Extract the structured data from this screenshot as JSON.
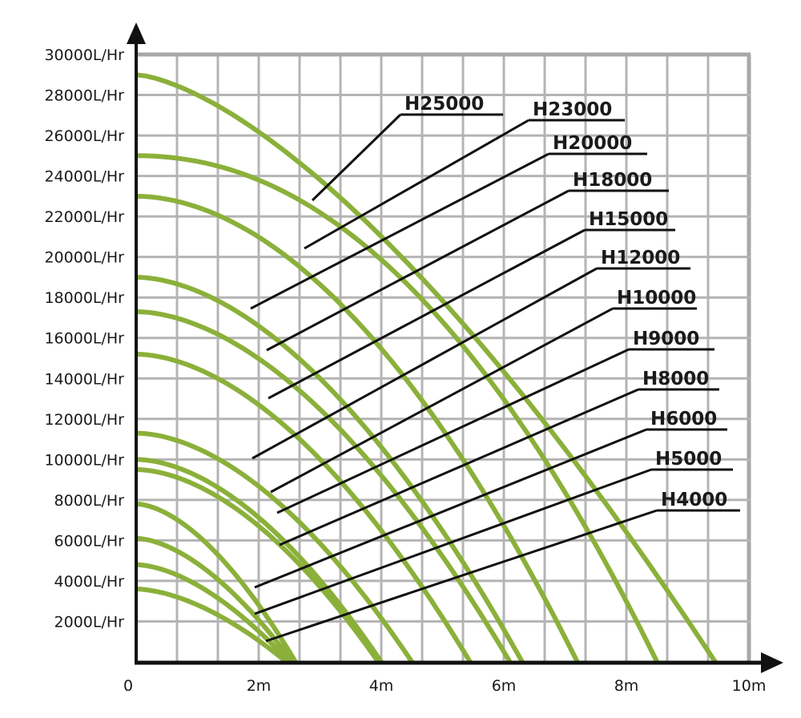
{
  "chart_data": {
    "type": "line",
    "title": "",
    "xlabel": "",
    "ylabel": "",
    "xlim": [
      0,
      10
    ],
    "ylim": [
      0,
      30000
    ],
    "grid": true,
    "x_grid_step": 0.6667,
    "y_grid_step": 2000,
    "x_ticks": [
      {
        "value": 0,
        "label": "0"
      },
      {
        "value": 2,
        "label": "2m"
      },
      {
        "value": 4,
        "label": "4m"
      },
      {
        "value": 6,
        "label": "6m"
      },
      {
        "value": 8,
        "label": "8m"
      },
      {
        "value": 10,
        "label": "10m"
      }
    ],
    "y_ticks": [
      {
        "value": 2000,
        "label": "2000L/Hr"
      },
      {
        "value": 4000,
        "label": "4000L/Hr"
      },
      {
        "value": 6000,
        "label": "6000L/Hr"
      },
      {
        "value": 8000,
        "label": "8000L/Hr"
      },
      {
        "value": 10000,
        "label": "10000L/Hr"
      },
      {
        "value": 12000,
        "label": "12000L/Hr"
      },
      {
        "value": 14000,
        "label": "14000L/Hr"
      },
      {
        "value": 16000,
        "label": "16000L/Hr"
      },
      {
        "value": 18000,
        "label": "18000L/Hr"
      },
      {
        "value": 20000,
        "label": "20000L/Hr"
      },
      {
        "value": 22000,
        "label": "22000L/Hr"
      },
      {
        "value": 24000,
        "label": "24000L/Hr"
      },
      {
        "value": 26000,
        "label": "26000L/Hr"
      },
      {
        "value": 28000,
        "label": "28000L/Hr"
      },
      {
        "value": 30000,
        "label": "30000L/Hr"
      }
    ],
    "curve_color": "#8bb03a",
    "series": [
      {
        "name": "H25000",
        "max_flow": 29000,
        "max_head": 9.45,
        "shape": 1.5
      },
      {
        "name": "H23000",
        "max_flow": 25000,
        "max_head": 8.5,
        "shape": 2.1
      },
      {
        "name": "H20000",
        "max_flow": 23000,
        "max_head": 7.2,
        "shape": 1.9
      },
      {
        "name": "H18000",
        "max_flow": 19000,
        "max_head": 6.3,
        "shape": 1.8
      },
      {
        "name": "H15000",
        "max_flow": 17300,
        "max_head": 6.1,
        "shape": 1.8
      },
      {
        "name": "H12000",
        "max_flow": 15200,
        "max_head": 5.45,
        "shape": 1.8
      },
      {
        "name": "H10000",
        "max_flow": 11300,
        "max_head": 4.5,
        "shape": 1.8
      },
      {
        "name": "H9000",
        "max_flow": 10000,
        "max_head": 4.0,
        "shape": 1.8
      },
      {
        "name": "H8000",
        "max_flow": 9500,
        "max_head": 3.95,
        "shape": 1.8
      },
      {
        "name": "H6000",
        "max_flow": 7800,
        "max_head": 2.6,
        "shape": 1.7
      },
      {
        "name": "H5000",
        "max_flow": 6100,
        "max_head": 2.55,
        "shape": 1.7
      },
      {
        "name": "H4000",
        "max_flow": 4800,
        "max_head": 2.5,
        "shape": 1.7
      },
      {
        "name": "",
        "max_flow": 3600,
        "max_head": 2.45,
        "shape": 1.7
      }
    ],
    "labels": [
      "H25000",
      "H23000",
      "H20000",
      "H18000",
      "H15000",
      "H12000",
      "H10000",
      "H9000",
      "H8000",
      "H6000",
      "H5000",
      "H4000"
    ]
  }
}
